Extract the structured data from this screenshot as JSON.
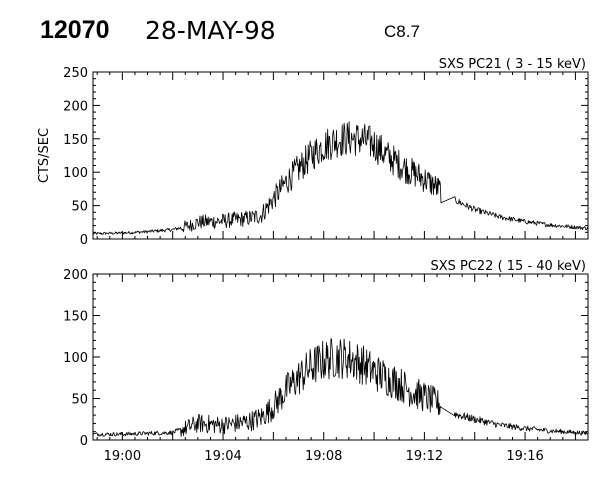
{
  "header": {
    "event_id": "12070",
    "date": "28-MAY-98",
    "flare_class": "C8.7"
  },
  "chart_data": [
    {
      "type": "line",
      "title": "SXS PC21  (  3 - 15 keV)",
      "ylabel": "CTS/SEC",
      "xlabel": "",
      "ylim": [
        0,
        250
      ],
      "yticks": [
        0,
        50,
        100,
        150,
        200,
        250
      ],
      "xlim": [
        "18:58:50",
        "19:18:30"
      ],
      "xtick_labels": [
        "19:00",
        "19:04",
        "19:08",
        "19:12",
        "19:16"
      ],
      "series": [
        {
          "values": [
            [
              "18:58:50",
              8
            ],
            [
              "19:00:00",
              9
            ],
            [
              "19:01:00",
              11
            ],
            [
              "19:02:00",
              14
            ],
            [
              "19:02:40",
              20
            ],
            [
              "19:03:00",
              25
            ],
            [
              "19:04:00",
              27
            ],
            [
              "19:05:00",
              31
            ],
            [
              "19:05:30",
              35
            ],
            [
              "19:06:00",
              60
            ],
            [
              "19:06:30",
              85
            ],
            [
              "19:07:00",
              105
            ],
            [
              "19:07:30",
              125
            ],
            [
              "19:08:00",
              140
            ],
            [
              "19:08:30",
              148
            ],
            [
              "19:09:00",
              151
            ],
            [
              "19:09:30",
              149
            ],
            [
              "19:10:00",
              142
            ],
            [
              "19:10:30",
              125
            ],
            [
              "19:11:00",
              112
            ],
            [
              "19:11:30",
              100
            ],
            [
              "19:12:00",
              90
            ],
            [
              "19:12:30",
              77
            ],
            [
              "19:13:00",
              62
            ],
            [
              "19:14:00",
              44
            ],
            [
              "19:15:00",
              33
            ],
            [
              "19:16:00",
              26
            ],
            [
              "19:17:00",
              21
            ],
            [
              "19:18:30",
              16
            ]
          ]
        }
      ]
    },
    {
      "type": "line",
      "title": "SXS PC22  ( 15 - 40 keV)",
      "ylabel": "",
      "xlabel": "",
      "ylim": [
        0,
        200
      ],
      "yticks": [
        0,
        50,
        100,
        150,
        200
      ],
      "xlim": [
        "18:58:50",
        "19:18:30"
      ],
      "xtick_labels": [
        "19:00",
        "19:04",
        "19:08",
        "19:12",
        "19:16"
      ],
      "series": [
        {
          "values": [
            [
              "18:58:50",
              7
            ],
            [
              "19:00:00",
              7
            ],
            [
              "19:01:00",
              8
            ],
            [
              "19:02:00",
              9
            ],
            [
              "19:02:30",
              14
            ],
            [
              "19:03:00",
              20
            ],
            [
              "19:04:00",
              18
            ],
            [
              "19:05:00",
              22
            ],
            [
              "19:05:30",
              27
            ],
            [
              "19:06:00",
              40
            ],
            [
              "19:06:30",
              60
            ],
            [
              "19:07:00",
              75
            ],
            [
              "19:07:30",
              88
            ],
            [
              "19:08:00",
              96
            ],
            [
              "19:08:30",
              100
            ],
            [
              "19:09:00",
              98
            ],
            [
              "19:09:30",
              92
            ],
            [
              "19:10:00",
              82
            ],
            [
              "19:10:30",
              75
            ],
            [
              "19:11:00",
              68
            ],
            [
              "19:11:30",
              58
            ],
            [
              "19:12:00",
              52
            ],
            [
              "19:12:30",
              45
            ],
            [
              "19:13:00",
              33
            ],
            [
              "19:14:00",
              25
            ],
            [
              "19:15:00",
              18
            ],
            [
              "19:16:00",
              14
            ],
            [
              "19:17:00",
              11
            ],
            [
              "19:18:30",
              8
            ]
          ]
        }
      ]
    }
  ]
}
